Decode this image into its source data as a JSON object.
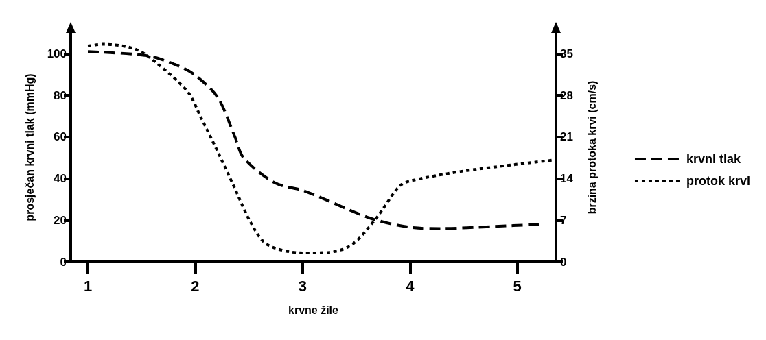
{
  "chart_data": {
    "type": "line",
    "xlabel": "krvne žile",
    "ylabel": "prosječan krvni tlak (mmHg)",
    "y2label": "brzina protoka krvi (cm/s)",
    "xlim": [
      0.84,
      5.36
    ],
    "xticks": [
      1,
      2,
      3,
      4,
      5
    ],
    "ylim": [
      0,
      110
    ],
    "yticks": [
      0,
      20,
      40,
      60,
      80,
      100
    ],
    "y2lim": [
      0,
      38.5
    ],
    "y2ticks": [
      0,
      7,
      14,
      21,
      28,
      35
    ],
    "grid": false,
    "legend": "right",
    "marker": "none",
    "series": [
      {
        "name": "krvni tlak",
        "color": "#000000",
        "line_style": "dashed",
        "x": [
          1,
          1.56,
          1.85,
          2,
          2.21,
          2.37,
          2.45,
          2.74,
          3.02,
          3.63,
          4,
          4.28,
          4.78,
          5.2
        ],
        "values": [
          101,
          99,
          94,
          89.7,
          79,
          60,
          50,
          38,
          34,
          21,
          16.6,
          16,
          17,
          18
        ]
      },
      {
        "name": "protok krvi",
        "color": "#000000",
        "line_style": "dotted",
        "axis": "y2",
        "x": [
          1,
          1.15,
          1.44,
          1.63,
          1.93,
          2.05,
          2.21,
          2.36,
          2.52,
          2.67,
          3,
          3.25,
          3.46,
          3.68,
          3.9,
          4,
          4.51,
          5.33
        ],
        "values": [
          36.3,
          36.6,
          35.8,
          33.6,
          28.6,
          24.4,
          18.5,
          12.7,
          6.5,
          2.9,
          1.5,
          1.6,
          2.9,
          7.2,
          12.7,
          13.6,
          15.3,
          17.1
        ]
      }
    ]
  }
}
